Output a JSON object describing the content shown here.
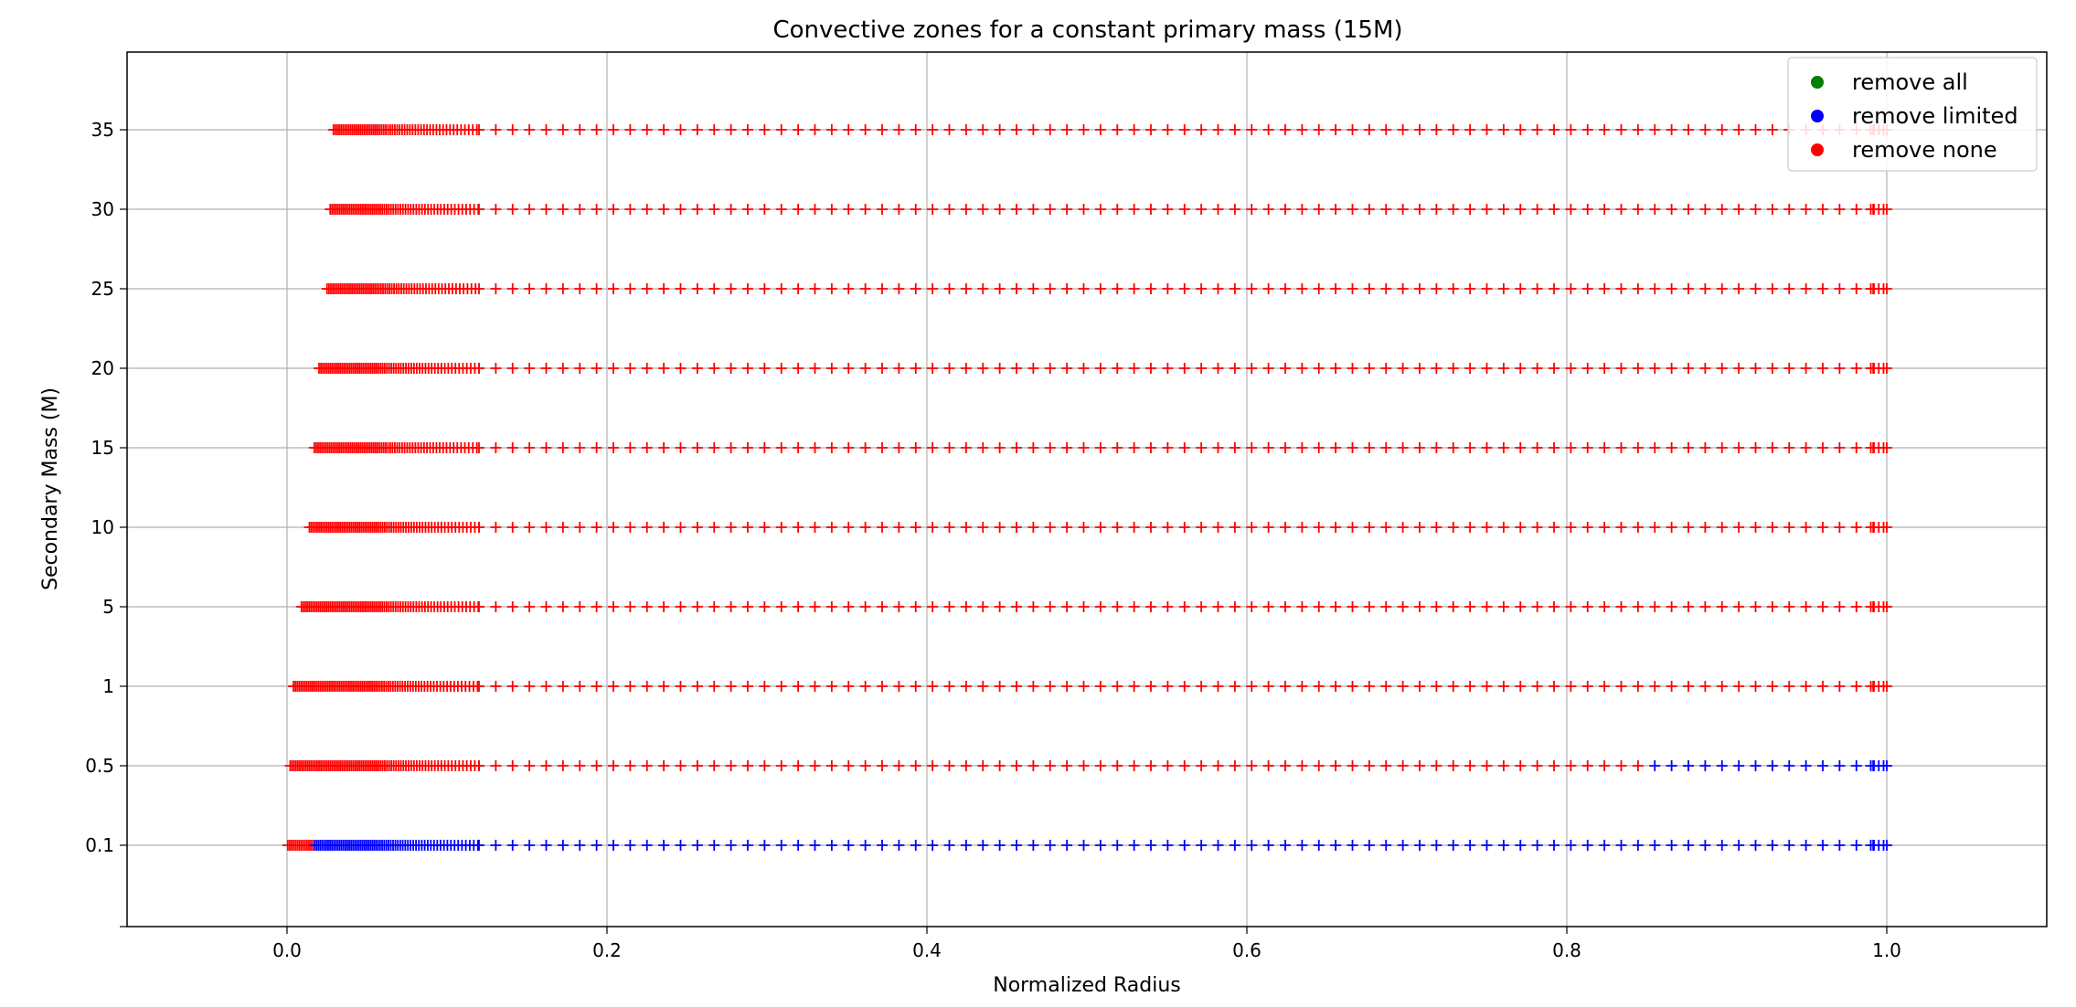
{
  "chart_data": {
    "type": "scatter",
    "title": "Convective zones for a constant primary mass (15M)",
    "xlabel": "Normalized Radius",
    "ylabel": "Secondary Mass (M)",
    "xlim": [
      -0.1,
      1.1
    ],
    "x_ticks": [
      "0.0",
      "0.2",
      "0.4",
      "0.6",
      "0.8",
      "1.0"
    ],
    "categories": [
      "0.1",
      "0.5",
      "1",
      "5",
      "10",
      "15",
      "20",
      "25",
      "30",
      "35"
    ],
    "grid": true,
    "legend_position": "top-right",
    "marker": "+",
    "legend": [
      {
        "label": "remove all",
        "color": "#008000"
      },
      {
        "label": "remove limited",
        "color": "#0000ff"
      },
      {
        "label": "remove none",
        "color": "#ff0000"
      }
    ],
    "rows": [
      {
        "category": "0.1",
        "r_min": 0.0,
        "r_max": 1.0,
        "segments": [
          {
            "from": 0.0,
            "to": 0.017,
            "color": "#ff0000"
          },
          {
            "from": 0.017,
            "to": 1.0,
            "color": "#0000ff"
          }
        ]
      },
      {
        "category": "0.5",
        "r_min": 0.002,
        "r_max": 1.0,
        "segments": [
          {
            "from": 0.002,
            "to": 0.85,
            "color": "#ff0000"
          },
          {
            "from": 0.85,
            "to": 1.0,
            "color": "#0000ff"
          }
        ]
      },
      {
        "category": "1",
        "r_min": 0.004,
        "r_max": 1.0,
        "segments": [
          {
            "from": 0.004,
            "to": 1.0,
            "color": "#ff0000"
          }
        ]
      },
      {
        "category": "5",
        "r_min": 0.009,
        "r_max": 1.0,
        "segments": [
          {
            "from": 0.009,
            "to": 1.0,
            "color": "#ff0000"
          }
        ]
      },
      {
        "category": "10",
        "r_min": 0.014,
        "r_max": 1.0,
        "segments": [
          {
            "from": 0.014,
            "to": 1.0,
            "color": "#ff0000"
          }
        ]
      },
      {
        "category": "15",
        "r_min": 0.017,
        "r_max": 1.0,
        "segments": [
          {
            "from": 0.017,
            "to": 1.0,
            "color": "#ff0000"
          }
        ]
      },
      {
        "category": "20",
        "r_min": 0.02,
        "r_max": 1.0,
        "segments": [
          {
            "from": 0.02,
            "to": 1.0,
            "color": "#ff0000"
          }
        ]
      },
      {
        "category": "25",
        "r_min": 0.025,
        "r_max": 1.0,
        "segments": [
          {
            "from": 0.025,
            "to": 1.0,
            "color": "#ff0000"
          }
        ]
      },
      {
        "category": "30",
        "r_min": 0.027,
        "r_max": 1.0,
        "segments": [
          {
            "from": 0.027,
            "to": 1.0,
            "color": "#ff0000"
          }
        ]
      },
      {
        "category": "35",
        "r_min": 0.029,
        "r_max": 1.0,
        "segments": [
          {
            "from": 0.029,
            "to": 1.0,
            "color": "#ff0000"
          }
        ]
      }
    ]
  }
}
